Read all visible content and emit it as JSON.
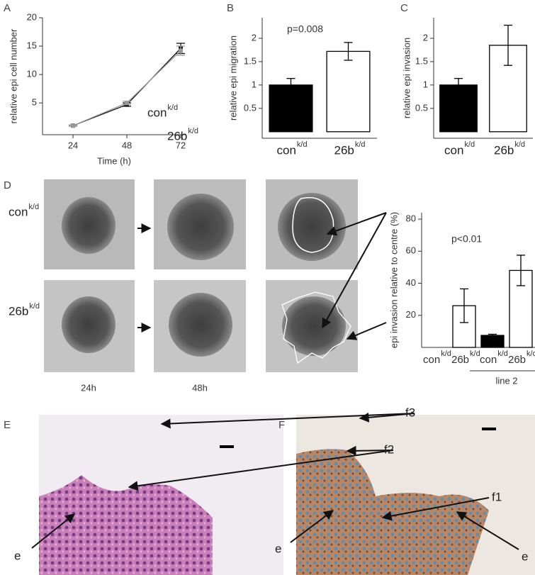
{
  "panels": [
    "A",
    "B",
    "C",
    "D",
    "E",
    "F"
  ],
  "chart_data": [
    {
      "type": "line",
      "x": [
        24,
        48,
        72
      ],
      "xlim": [
        10.4,
        74.2
      ],
      "xticks": [
        24,
        48,
        72
      ],
      "ylim": [
        -0.6,
        20
      ],
      "yticks": [
        5,
        10,
        15,
        20
      ],
      "xlabel": "Time (h)",
      "ylabel": "relative epi cell number",
      "series": [
        {
          "name": "con",
          "name_sup": "k/d",
          "color": "#111111",
          "values": [
            1,
            4.7,
            14.6
          ],
          "errors": [
            0.1,
            0.3,
            0.9
          ]
        },
        {
          "name": "26b",
          "name_sup": "k/d",
          "color": "#999999",
          "values": [
            1,
            5,
            14.2
          ],
          "errors": [
            0.1,
            0.3,
            0.8
          ]
        }
      ]
    },
    {
      "type": "bar",
      "categories": [
        "con",
        "26b"
      ],
      "category_sup": [
        "k/d",
        "k/d"
      ],
      "values": [
        1,
        1.72
      ],
      "errors": [
        0.14,
        0.19
      ],
      "colors": [
        "#000000",
        "#ffffff"
      ],
      "ylim": [
        -0.14,
        2.44
      ],
      "yticks": [
        0.5,
        1,
        1.5,
        2
      ],
      "ylabel": "relative epi migration",
      "annotation": "p=0.008"
    },
    {
      "type": "bar",
      "categories": [
        "con",
        "26b"
      ],
      "category_sup": [
        "k/d",
        "k/d"
      ],
      "values": [
        1,
        1.85
      ],
      "errors": [
        0.14,
        0.43
      ],
      "colors": [
        "#000000",
        "#ffffff"
      ],
      "ylim": [
        -0.14,
        2.44
      ],
      "yticks": [
        0.5,
        1,
        1.5,
        2
      ],
      "ylabel": "relative epi invasion"
    },
    {
      "type": "bar",
      "categories": [
        "con",
        "26b",
        "con",
        "26b"
      ],
      "category_sup": [
        "k/d",
        "k/d",
        "k/d",
        "k/d"
      ],
      "values": [
        0,
        26,
        7.5,
        48
      ],
      "errors": [
        null,
        10.5,
        0.7,
        9.5
      ],
      "colors": [
        "#000000",
        "#ffffff",
        "#000000",
        "#ffffff"
      ],
      "ylim": [
        0,
        84
      ],
      "yticks": [
        20,
        40,
        60,
        80
      ],
      "ylabel": "epi invasion relative to centre (%)",
      "annotation": "p<0.01",
      "group_label": "line 2"
    }
  ],
  "photo_rows": [
    {
      "label": "con",
      "sup": "k/d"
    },
    {
      "label": "26b",
      "sup": "k/d"
    }
  ],
  "photo_times": [
    "24h",
    "48h"
  ],
  "tissue_labels": {
    "E": [
      "f3",
      "f2",
      "e"
    ],
    "F": [
      "f1",
      "e",
      "e"
    ]
  }
}
